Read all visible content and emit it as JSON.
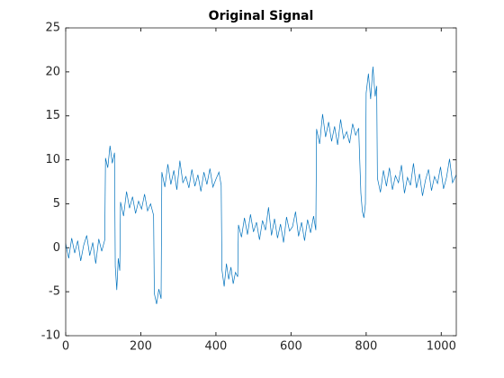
{
  "chart_data": {
    "type": "line",
    "title": "Original Signal",
    "x": [
      0,
      8,
      16,
      24,
      32,
      40,
      48,
      56,
      64,
      72,
      80,
      88,
      96,
      104,
      106,
      112,
      118,
      124,
      130,
      132,
      136,
      140,
      144,
      146,
      154,
      162,
      170,
      178,
      186,
      194,
      202,
      210,
      218,
      226,
      234,
      236,
      242,
      248,
      254,
      256,
      264,
      272,
      280,
      288,
      296,
      304,
      312,
      320,
      328,
      336,
      344,
      352,
      360,
      368,
      376,
      384,
      392,
      400,
      408,
      414,
      416,
      422,
      428,
      434,
      440,
      446,
      452,
      458,
      460,
      468,
      476,
      484,
      492,
      500,
      508,
      516,
      524,
      532,
      540,
      548,
      556,
      564,
      572,
      580,
      588,
      596,
      604,
      612,
      620,
      628,
      636,
      644,
      652,
      660,
      666,
      668,
      676,
      684,
      692,
      700,
      708,
      716,
      724,
      732,
      740,
      748,
      756,
      764,
      772,
      780,
      786,
      790,
      794,
      798,
      800,
      806,
      812,
      818,
      824,
      828,
      830,
      838,
      846,
      854,
      862,
      870,
      878,
      886,
      894,
      902,
      910,
      918,
      926,
      934,
      942,
      950,
      958,
      966,
      974,
      982,
      990,
      998,
      1006,
      1014,
      1022,
      1030,
      1040
    ],
    "values": [
      0.5,
      -1.2,
      1.1,
      -0.6,
      0.8,
      -1.5,
      0.3,
      1.4,
      -0.9,
      0.6,
      -1.8,
      1.0,
      -0.4,
      0.9,
      10.2,
      9.1,
      11.6,
      9.6,
      10.8,
      -2.1,
      -4.8,
      -1.2,
      -2.6,
      5.2,
      3.6,
      6.4,
      4.5,
      5.8,
      3.9,
      5.3,
      4.4,
      6.1,
      4.2,
      5.0,
      3.7,
      -5.2,
      -6.4,
      -4.7,
      -5.8,
      8.6,
      6.9,
      9.5,
      7.2,
      8.8,
      6.6,
      9.9,
      7.4,
      8.1,
      6.8,
      8.9,
      7.0,
      8.3,
      6.4,
      8.6,
      7.2,
      9.0,
      6.9,
      7.8,
      8.6,
      7.1,
      -2.5,
      -4.4,
      -1.8,
      -3.6,
      -2.2,
      -4.1,
      -2.8,
      -3.3,
      2.6,
      1.2,
      3.4,
      1.5,
      3.8,
      1.8,
      2.9,
      0.9,
      3.1,
      2.0,
      4.6,
      1.4,
      3.3,
      1.1,
      2.7,
      0.6,
      3.5,
      1.9,
      2.4,
      4.1,
      1.3,
      2.9,
      0.8,
      3.2,
      1.7,
      3.6,
      2.0,
      13.5,
      11.8,
      15.2,
      12.6,
      14.3,
      12.1,
      13.8,
      11.7,
      14.6,
      12.4,
      13.2,
      11.9,
      14.1,
      12.8,
      13.6,
      6.2,
      4.1,
      3.4,
      5.0,
      17.6,
      19.8,
      16.9,
      20.6,
      17.2,
      18.4,
      7.9,
      6.3,
      8.8,
      7.0,
      9.1,
      6.6,
      8.2,
      7.4,
      9.4,
      6.2,
      8.0,
      7.1,
      9.6,
      6.8,
      8.4,
      5.9,
      7.7,
      8.9,
      6.5,
      8.1,
      7.3,
      9.2,
      6.7,
      8.0,
      10.1,
      7.4,
      8.3
    ],
    "color": "#0072bd",
    "xlim": [
      0,
      1040
    ],
    "xticks": [
      0,
      200,
      400,
      600,
      800,
      1000
    ],
    "ylim": [
      -10,
      25
    ],
    "yticks": [
      -10,
      -5,
      0,
      5,
      10,
      15,
      20,
      25
    ],
    "grid": false
  }
}
